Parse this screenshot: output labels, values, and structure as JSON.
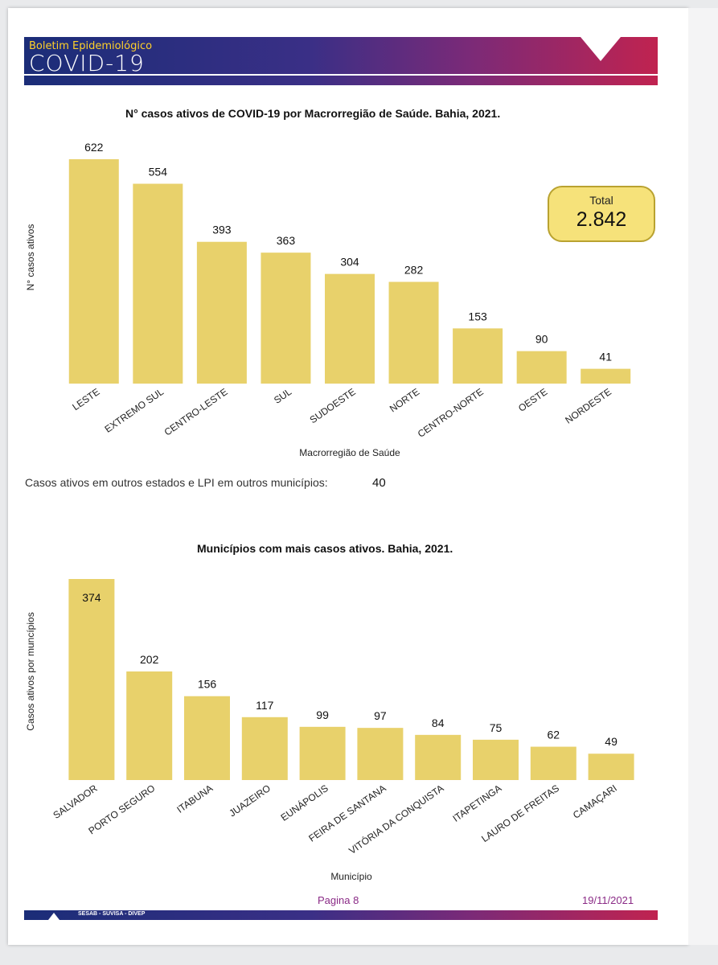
{
  "header": {
    "brand_sub": "Boletim Epidemiológico",
    "brand_main": "COVID-19"
  },
  "chart1_note": {
    "label": "Casos ativos em outros estados e LPI em outros municípios:",
    "value": "40"
  },
  "total": {
    "label": "Total",
    "value": "2.842"
  },
  "footer": {
    "page": "Pagina 8",
    "date": "19/11/2021",
    "org": "SESAB - SUVISA - DIVEP"
  },
  "colors": {
    "bar": "#e8d16b",
    "header_gradient": [
      "#1b2d78",
      "#7a2a78",
      "#c02350"
    ],
    "brand_sub": "#ffd12a",
    "footer_text": "#8a2a86"
  },
  "chart_data": [
    {
      "type": "bar",
      "title": "N° casos ativos  de COVID-19 por Macrorregião de Saúde. Bahia, 2021.",
      "xlabel": "Macrorregião de Saúde",
      "ylabel": "N° casos ativos",
      "categories": [
        "LESTE",
        "EXTREMO SUL",
        "CENTRO-LESTE",
        "SUL",
        "SUDOESTE",
        "NORTE",
        "CENTRO-NORTE",
        "OESTE",
        "NORDESTE"
      ],
      "values": [
        622,
        554,
        393,
        363,
        304,
        282,
        153,
        90,
        41
      ],
      "grid": false
    },
    {
      "type": "bar",
      "title": "Municípios com mais casos ativos. Bahia, 2021.",
      "xlabel": "Município",
      "ylabel": "Casos ativos por muncípios",
      "categories": [
        "SALVADOR",
        "PORTO SEGURO",
        "ITABUNA",
        "JUAZEIRO",
        "EUNÁPOLIS",
        "FEIRA DE SANTANA",
        "VITÓRIA DA CONQUISTA",
        "ITAPETINGA",
        "LAURO DE FREITAS",
        "CAMAÇARI"
      ],
      "values": [
        374,
        202,
        156,
        117,
        99,
        97,
        84,
        75,
        62,
        49
      ],
      "grid": false
    }
  ]
}
